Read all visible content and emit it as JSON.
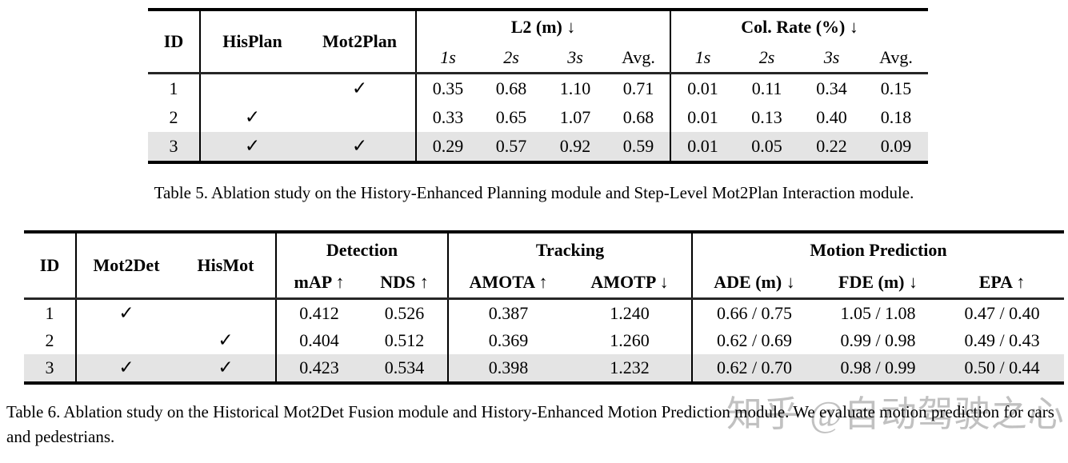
{
  "checkmark": "✓",
  "watermark": "知乎 @自动驾驶之心",
  "colors": {
    "highlight_row": "#e4e4e4",
    "rule": "#000000",
    "watermark_gray": "#8f8f8f"
  },
  "table5": {
    "headers": {
      "id": "ID",
      "checks": [
        "HisPlan",
        "Mot2Plan"
      ]
    },
    "groups": [
      {
        "label": "L2 (m) ↓",
        "subs": [
          "1s",
          "2s",
          "3s",
          "Avg."
        ]
      },
      {
        "label": "Col. Rate (%) ↓",
        "subs": [
          "1s",
          "2s",
          "3s",
          "Avg."
        ]
      }
    ],
    "rows": [
      {
        "id": "1",
        "checks": [
          false,
          true
        ],
        "values": [
          "0.35",
          "0.68",
          "1.10",
          "0.71",
          "0.01",
          "0.11",
          "0.34",
          "0.15"
        ],
        "highlight": false
      },
      {
        "id": "2",
        "checks": [
          true,
          false
        ],
        "values": [
          "0.33",
          "0.65",
          "1.07",
          "0.68",
          "0.01",
          "0.13",
          "0.40",
          "0.18"
        ],
        "highlight": false
      },
      {
        "id": "3",
        "checks": [
          true,
          true
        ],
        "values": [
          "0.29",
          "0.57",
          "0.92",
          "0.59",
          "0.01",
          "0.05",
          "0.22",
          "0.09"
        ],
        "highlight": true
      }
    ],
    "caption": "Table 5. Ablation study on the History-Enhanced Planning module and Step-Level Mot2Plan Interaction module."
  },
  "table6": {
    "headers": {
      "id": "ID",
      "checks": [
        "Mot2Det",
        "HisMot"
      ]
    },
    "groups": [
      {
        "label": "Detection",
        "subs": [
          "mAP ↑",
          "NDS ↑"
        ]
      },
      {
        "label": "Tracking",
        "subs": [
          "AMOTA ↑",
          "AMOTP ↓"
        ]
      },
      {
        "label": "Motion Prediction",
        "subs": [
          "ADE (m) ↓",
          "FDE (m) ↓",
          "EPA ↑"
        ]
      }
    ],
    "rows": [
      {
        "id": "1",
        "checks": [
          true,
          false
        ],
        "values": [
          "0.412",
          "0.526",
          "0.387",
          "1.240",
          "0.66 / 0.75",
          "1.05 / 1.08",
          "0.47 / 0.40"
        ],
        "highlight": false
      },
      {
        "id": "2",
        "checks": [
          false,
          true
        ],
        "values": [
          "0.404",
          "0.512",
          "0.369",
          "1.260",
          "0.62 / 0.69",
          "0.99 / 0.98",
          "0.49 / 0.43"
        ],
        "highlight": false
      },
      {
        "id": "3",
        "checks": [
          true,
          true
        ],
        "values": [
          "0.423",
          "0.534",
          "0.398",
          "1.232",
          "0.62 / 0.70",
          "0.98 / 0.99",
          "0.50 / 0.44"
        ],
        "highlight": true
      }
    ],
    "caption": "Table 6. Ablation study on the Historical Mot2Det Fusion module and History-Enhanced Motion Prediction module. We evaluate motion prediction for cars and pedestrians."
  }
}
